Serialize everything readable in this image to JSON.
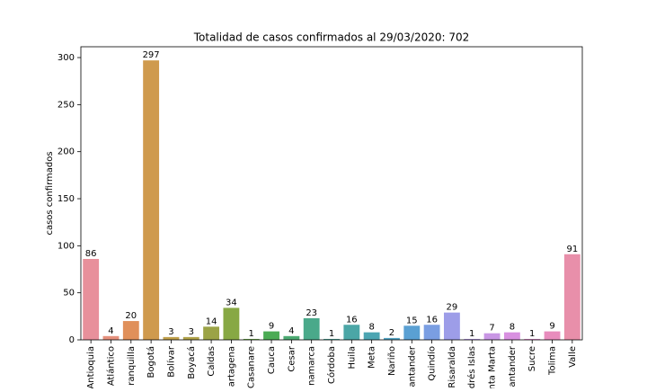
{
  "chart_data": {
    "type": "bar",
    "title": "Totalidad de casos confirmados al 29/03/2020: 702",
    "y_label": "casos confirmados",
    "categories": [
      "Antioquia",
      "Atlántico",
      "ranquilla",
      "Bogotá",
      "Bolívar",
      "Boyacá",
      "Caldas",
      "artagena",
      "Casanare",
      "Cauca",
      "Cesar",
      "namarca",
      "Córdoba",
      "Huila",
      "Meta",
      "Nariño",
      "antander",
      "Quindío",
      "Risaralda",
      "drés Islas",
      "nta Marta",
      "antander",
      "Sucre",
      "Tolima",
      "Valle"
    ],
    "values": [
      86,
      4,
      20,
      297,
      3,
      3,
      14,
      34,
      1,
      9,
      4,
      23,
      1,
      16,
      8,
      2,
      15,
      16,
      29,
      1,
      7,
      8,
      1,
      9,
      91
    ],
    "colors": [
      "#e8909b",
      "#e5907c",
      "#e0905a",
      "#cf9a4e",
      "#c0a04a",
      "#b0a248",
      "#9ba346",
      "#87a844",
      "#6aaa48",
      "#4bab54",
      "#4caa72",
      "#4aa98a",
      "#4aa79b",
      "#4ba6a6",
      "#4ca5b2",
      "#50a3c2",
      "#5aa0d3",
      "#7a9ee2",
      "#9d9de8",
      "#b79ae8",
      "#c896e4",
      "#d890e0",
      "#e38dd0",
      "#e88cbd",
      "#e88faa"
    ],
    "ylim": [
      0,
      311.5
    ],
    "yticks": [
      0,
      50,
      100,
      150,
      200,
      250,
      300
    ],
    "grid": false
  }
}
